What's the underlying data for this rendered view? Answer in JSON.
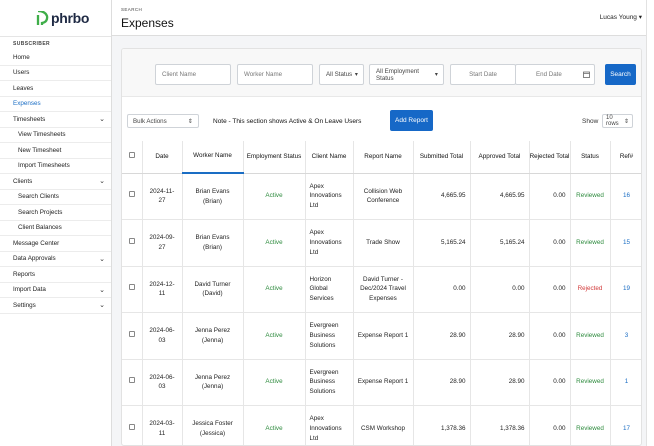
{
  "brand": {
    "logo_text": "phrbo"
  },
  "sidebar": {
    "section_label": "SUBSCRIBER",
    "items": [
      {
        "label": "Home",
        "sub": false,
        "expand": false
      },
      {
        "label": "Users",
        "sub": false,
        "expand": false
      },
      {
        "label": "Leaves",
        "sub": false,
        "expand": false
      },
      {
        "label": "Expenses",
        "sub": false,
        "expand": false,
        "active": true
      },
      {
        "label": "Timesheets",
        "sub": false,
        "expand": true
      },
      {
        "label": "View Timesheets",
        "sub": true,
        "expand": false
      },
      {
        "label": "New Timesheet",
        "sub": true,
        "expand": false
      },
      {
        "label": "Import Timesheets",
        "sub": true,
        "expand": false
      },
      {
        "label": "Clients",
        "sub": false,
        "expand": true
      },
      {
        "label": "Search Clients",
        "sub": true,
        "expand": false
      },
      {
        "label": "Search Projects",
        "sub": true,
        "expand": false
      },
      {
        "label": "Client Balances",
        "sub": true,
        "expand": false
      },
      {
        "label": "Message Center",
        "sub": false,
        "expand": false
      },
      {
        "label": "Data Approvals",
        "sub": false,
        "expand": true
      },
      {
        "label": "Reports",
        "sub": false,
        "expand": false
      },
      {
        "label": "Import Data",
        "sub": false,
        "expand": true
      },
      {
        "label": "Settings",
        "sub": false,
        "expand": true
      }
    ]
  },
  "header": {
    "breadcrumb": "SEARCH",
    "title": "Expenses",
    "user": "Lucas Young ▾"
  },
  "filters": {
    "client_placeholder": "Client Name",
    "worker_placeholder": "Worker Name",
    "status_value": "All Status",
    "employment_value": "All Employment Status",
    "start_placeholder": "Start Date",
    "end_placeholder": "End Date",
    "search_label": "Search"
  },
  "actions": {
    "bulk_label": "Bulk Actions",
    "note": "Note - This section shows Active & On Leave Users",
    "add_report_label": "Add Report",
    "show_label": "Show",
    "rows_value": "10 rows"
  },
  "table": {
    "headers": [
      "Date",
      "Worker Name",
      "Employment Status",
      "Client Name",
      "Report Name",
      "Submitted Total",
      "Approved Total",
      "Rejected Total",
      "Status",
      "Ref#"
    ],
    "rows": [
      {
        "date": "2024-11-27",
        "worker": "Brian Evans (Brian)",
        "employment": "Active",
        "client": "Apex Innovations Ltd",
        "report": "Collision Web Conference",
        "submitted": "4,665.95",
        "approved": "4,665.95",
        "rejected": "0.00",
        "status": "Reviewed",
        "ref": "16"
      },
      {
        "date": "2024-09-27",
        "worker": "Brian Evans (Brian)",
        "employment": "Active",
        "client": "Apex Innovations Ltd",
        "report": "Trade Show",
        "submitted": "5,165.24",
        "approved": "5,165.24",
        "rejected": "0.00",
        "status": "Reviewed",
        "ref": "15"
      },
      {
        "date": "2024-12-11",
        "worker": "David Turner (David)",
        "employment": "Active",
        "client": "Horizon Global Services",
        "report": "David Turner - Dec/2024 Travel Expenses",
        "submitted": "0.00",
        "approved": "0.00",
        "rejected": "0.00",
        "status": "Rejected",
        "ref": "19"
      },
      {
        "date": "2024-06-03",
        "worker": "Jenna Perez (Jenna)",
        "employment": "Active",
        "client": "Evergreen Business Solutions",
        "report": "Expense Report 1",
        "submitted": "28.90",
        "approved": "28.90",
        "rejected": "0.00",
        "status": "Reviewed",
        "ref": "3"
      },
      {
        "date": "2024-06-03",
        "worker": "Jenna Perez (Jenna)",
        "employment": "Active",
        "client": "Evergreen Business Solutions",
        "report": "Expense Report 1",
        "submitted": "28.90",
        "approved": "28.90",
        "rejected": "0.00",
        "status": "Reviewed",
        "ref": "1"
      },
      {
        "date": "2024-03-11",
        "worker": "Jessica Foster (Jessica)",
        "employment": "Active",
        "client": "Apex Innovations Ltd",
        "report": "CSM Workshop",
        "submitted": "1,378.36",
        "approved": "1,378.36",
        "rejected": "0.00",
        "status": "Reviewed",
        "ref": "17"
      }
    ]
  }
}
